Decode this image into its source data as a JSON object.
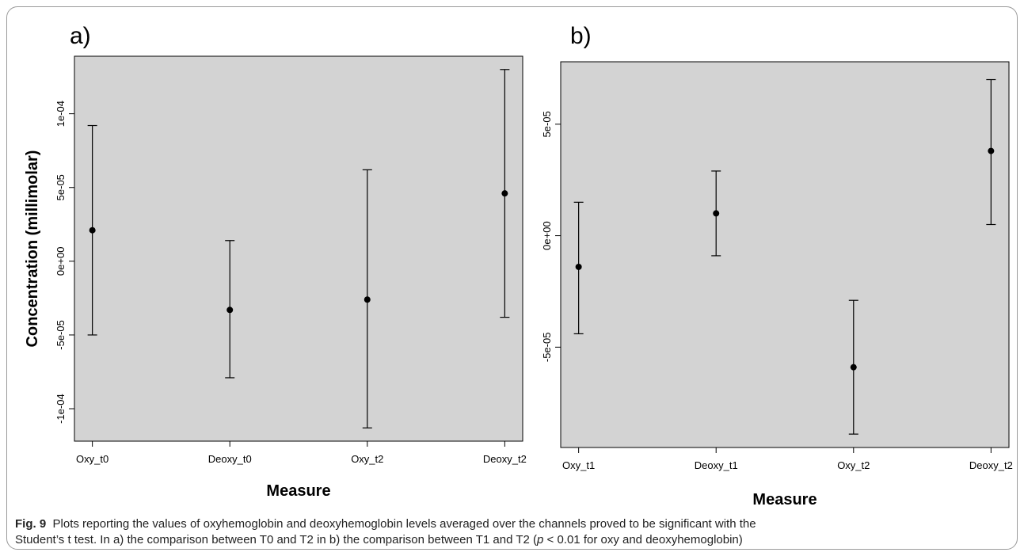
{
  "chart_data": [
    {
      "type": "scatter",
      "panel_label": "a)",
      "categories": [
        "Oxy_t0",
        "Deoxy_t0",
        "Oxy_t2",
        "Deoxy_t2"
      ],
      "series": [
        {
          "means": [
            2.1e-05,
            -3.3e-05,
            -2.6e-05,
            4.6e-05
          ],
          "lower": [
            -5e-05,
            -7.9e-05,
            -0.000113,
            -3.8e-05
          ],
          "upper": [
            9.2e-05,
            1.4e-05,
            6.2e-05,
            0.00013
          ]
        }
      ],
      "y_ticks": [
        -0.0001,
        -5e-05,
        0,
        5e-05,
        0.0001
      ],
      "y_tick_labels": [
        "-1e-04",
        "-5e-05",
        "0e+00",
        "5e-05",
        "1e-04"
      ],
      "xlabel": "Measure",
      "ylabel": "Concentration (millimolar)",
      "ylim": [
        -0.000122,
        0.000139
      ],
      "grid": false,
      "background": "#d3d3d3"
    },
    {
      "type": "scatter",
      "panel_label": "b)",
      "categories": [
        "Oxy_t1",
        "Deoxy_t1",
        "Oxy_t2",
        "Deoxy_t2"
      ],
      "series": [
        {
          "means": [
            -1.4e-05,
            1e-05,
            -5.9e-05,
            3.8e-05
          ],
          "lower": [
            -4.4e-05,
            -9e-06,
            -8.9e-05,
            5e-06
          ],
          "upper": [
            1.5e-05,
            2.9e-05,
            -2.9e-05,
            7e-05
          ]
        }
      ],
      "y_ticks": [
        -5e-05,
        0,
        5e-05
      ],
      "y_tick_labels": [
        "-5e-05",
        "0e+00",
        "5e-05"
      ],
      "xlabel": "Measure",
      "ylabel": "",
      "ylim": [
        -9.5e-05,
        7.8e-05
      ],
      "grid": false,
      "background": "#d3d3d3"
    }
  ],
  "caption": {
    "label": "Fig. 9",
    "text_1": "Plots reporting the values of oxyhemoglobin and deoxyhemoglobin levels averaged over the channels proved to be significant with the",
    "text_2a": "Student’s t test. In a) the comparison between T0 and T2 in b) the comparison between T1 and T2 (",
    "text_2p": "p",
    "text_2b": " < 0.01 for oxy and deoxyhemoglobin)"
  }
}
